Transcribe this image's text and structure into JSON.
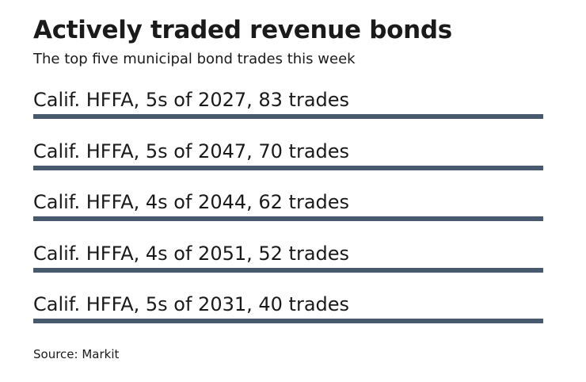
{
  "colors": {
    "bar": "#475a6e",
    "text": "#1a1a1a",
    "background": "#ffffff"
  },
  "chart_data": {
    "type": "bar",
    "orientation": "horizontal",
    "title": "Actively traded revenue bonds",
    "subtitle": "The top five municipal bond trades this week",
    "source": "Source: Markit",
    "categories": [
      "Calif. HFFA, 5s of 2027",
      "Calif. HFFA, 5s of 2047",
      "Calif. HFFA, 4s of 2044",
      "Calif. HFFA, 4s of 2051",
      "Calif. HFFA, 5s of 2031"
    ],
    "values": [
      83,
      70,
      62,
      52,
      40
    ],
    "value_unit": "trades",
    "labels": [
      "Calif. HFFA, 5s of 2027, 83 trades",
      "Calif. HFFA, 5s of 2047, 70 trades",
      "Calif. HFFA, 4s of 2044, 62 trades",
      "Calif. HFFA, 4s of 2051, 52 trades",
      "Calif. HFFA, 5s of 2031, 40 trades"
    ],
    "bar_fill_fraction": [
      1,
      1,
      1,
      1,
      1
    ]
  }
}
